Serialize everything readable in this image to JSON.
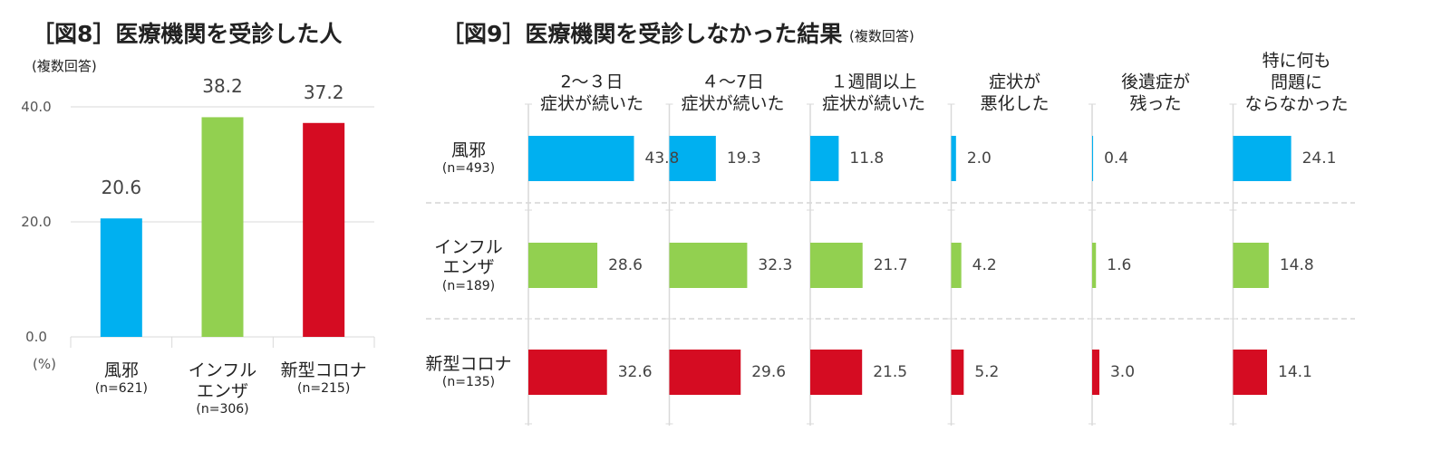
{
  "chart_data": [
    {
      "type": "bar",
      "title": "［図8］医療機関を受診した人",
      "subtitle": "(複数回答)",
      "y_unit": "(%)",
      "categories": [
        "風邪",
        "インフル\nエンザ",
        "新型コロナ"
      ],
      "sample_sizes": [
        "(n=621)",
        "(n=306)",
        "(n=215)"
      ],
      "values": [
        20.6,
        38.2,
        37.2
      ],
      "colors": [
        "#00b0f0",
        "#92d050",
        "#d50c22"
      ],
      "ylim": [
        0,
        40
      ],
      "yticks": [
        {
          "value": 0,
          "label": "0.0"
        },
        {
          "value": 20,
          "label": "20.0"
        },
        {
          "value": 40,
          "label": "40.0"
        }
      ],
      "grid": true
    },
    {
      "type": "barh",
      "title": "［図9］医療機関を受診しなかった結果",
      "subtitle": "(複数回答)",
      "categories": [
        "2～３日\n症状が続いた",
        "４～7日\n症状が続いた",
        "１週間以上\n症状が続いた",
        "症状が\n悪化した",
        "後遺症が\n残った",
        "特に何も\n問題に\nならなかった"
      ],
      "series": [
        {
          "name": "風邪",
          "sample_size": "(n=493)",
          "color": "#00b0f0",
          "values": [
            43.8,
            19.3,
            11.8,
            2.0,
            0.4,
            24.1
          ],
          "value_labels": [
            "43.8",
            "19.3",
            "11.8",
            "2.0",
            "0.4",
            "24.1"
          ]
        },
        {
          "name": "インフル\nエンザ",
          "sample_size": "(n=189)",
          "color": "#92d050",
          "values": [
            28.6,
            32.3,
            21.7,
            4.2,
            1.6,
            14.8
          ],
          "value_labels": [
            "28.6",
            "32.3",
            "21.7",
            "4.2",
            "1.6",
            "14.8"
          ]
        },
        {
          "name": "新型コロナ",
          "sample_size": "(n=135)",
          "color": "#d50c22",
          "values": [
            32.6,
            29.6,
            21.5,
            5.2,
            3.0,
            14.1
          ],
          "value_labels": [
            "32.6",
            "29.6",
            "21.5",
            "5.2",
            "3.0",
            "14.1"
          ]
        }
      ]
    }
  ]
}
